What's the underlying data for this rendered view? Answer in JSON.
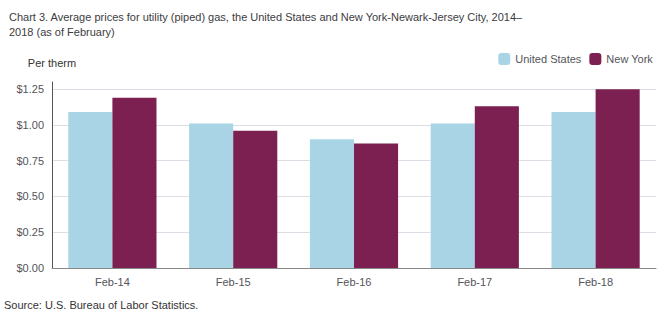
{
  "chart_data": {
    "type": "bar",
    "title": "Chart 3. Average prices for utility (piped) gas, the United States and New York-Newark-Jersey City, 2014–\n2018 (as of February)",
    "ylabel": "Per therm",
    "annotations": [
      "Source: U.S. Bureau of Labor Statistics."
    ],
    "categories": [
      "Feb-14",
      "Feb-15",
      "Feb-16",
      "Feb-17",
      "Feb-18"
    ],
    "series": [
      {
        "name": "United States",
        "color": "#A8D4E6",
        "values": [
          1.09,
          1.01,
          0.9,
          1.01,
          1.09
        ]
      },
      {
        "name": "New York",
        "color": "#7B2050",
        "values": [
          1.19,
          0.96,
          0.87,
          1.13,
          1.25
        ]
      }
    ],
    "ylim": [
      0,
      1.3
    ],
    "yticks": [
      {
        "value": 0.0,
        "label": "$0.00"
      },
      {
        "value": 0.25,
        "label": "$0.25"
      },
      {
        "value": 0.5,
        "label": "$0.50"
      },
      {
        "value": 0.75,
        "label": "$0.75"
      },
      {
        "value": 1.0,
        "label": "$1.00"
      },
      {
        "value": 1.25,
        "label": "$1.25"
      }
    ],
    "grid": true,
    "legend": "upper right"
  }
}
